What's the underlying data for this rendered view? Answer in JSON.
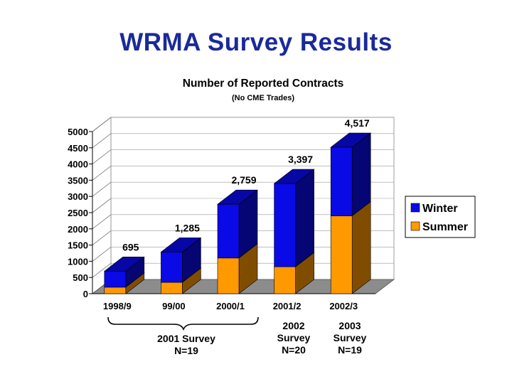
{
  "slide_title": "WRMA Survey Results",
  "colors": {
    "winter": "#0a0ae6",
    "summer": "#ff9900",
    "title": "#1a2a99"
  },
  "chart_data": {
    "type": "bar",
    "stacked": true,
    "title": "Number of Reported Contracts",
    "subtitle": "(No CME Trades)",
    "xlabel": "",
    "ylabel": "",
    "ylim": [
      0,
      5000
    ],
    "yticks": [
      "0",
      "500",
      "1000",
      "1500",
      "2000",
      "2500",
      "3000",
      "3500",
      "4000",
      "4500",
      "5000"
    ],
    "categories": [
      "1998/9",
      "99/00",
      "2000/1",
      "2001/2",
      "2002/3"
    ],
    "series": [
      {
        "name": "Summer",
        "values": [
          200,
          350,
          1100,
          830,
          2400
        ]
      },
      {
        "name": "Winter",
        "values": [
          495,
          935,
          1659,
          2567,
          2117
        ]
      }
    ],
    "totals": [
      695,
      1285,
      2759,
      3397,
      4517
    ],
    "total_labels": [
      "695",
      "1,285",
      "2,759",
      "3,397",
      "4,517"
    ],
    "legend": [
      "Winter",
      "Summer"
    ],
    "legend_position": "right",
    "annotations": [
      {
        "line1": "2001 Survey",
        "line2": "N=19"
      },
      {
        "line1": "2002",
        "line2": "Survey",
        "line3": "N=20"
      },
      {
        "line1": "2003",
        "line2": "Survey",
        "line3": "N=19"
      }
    ]
  }
}
